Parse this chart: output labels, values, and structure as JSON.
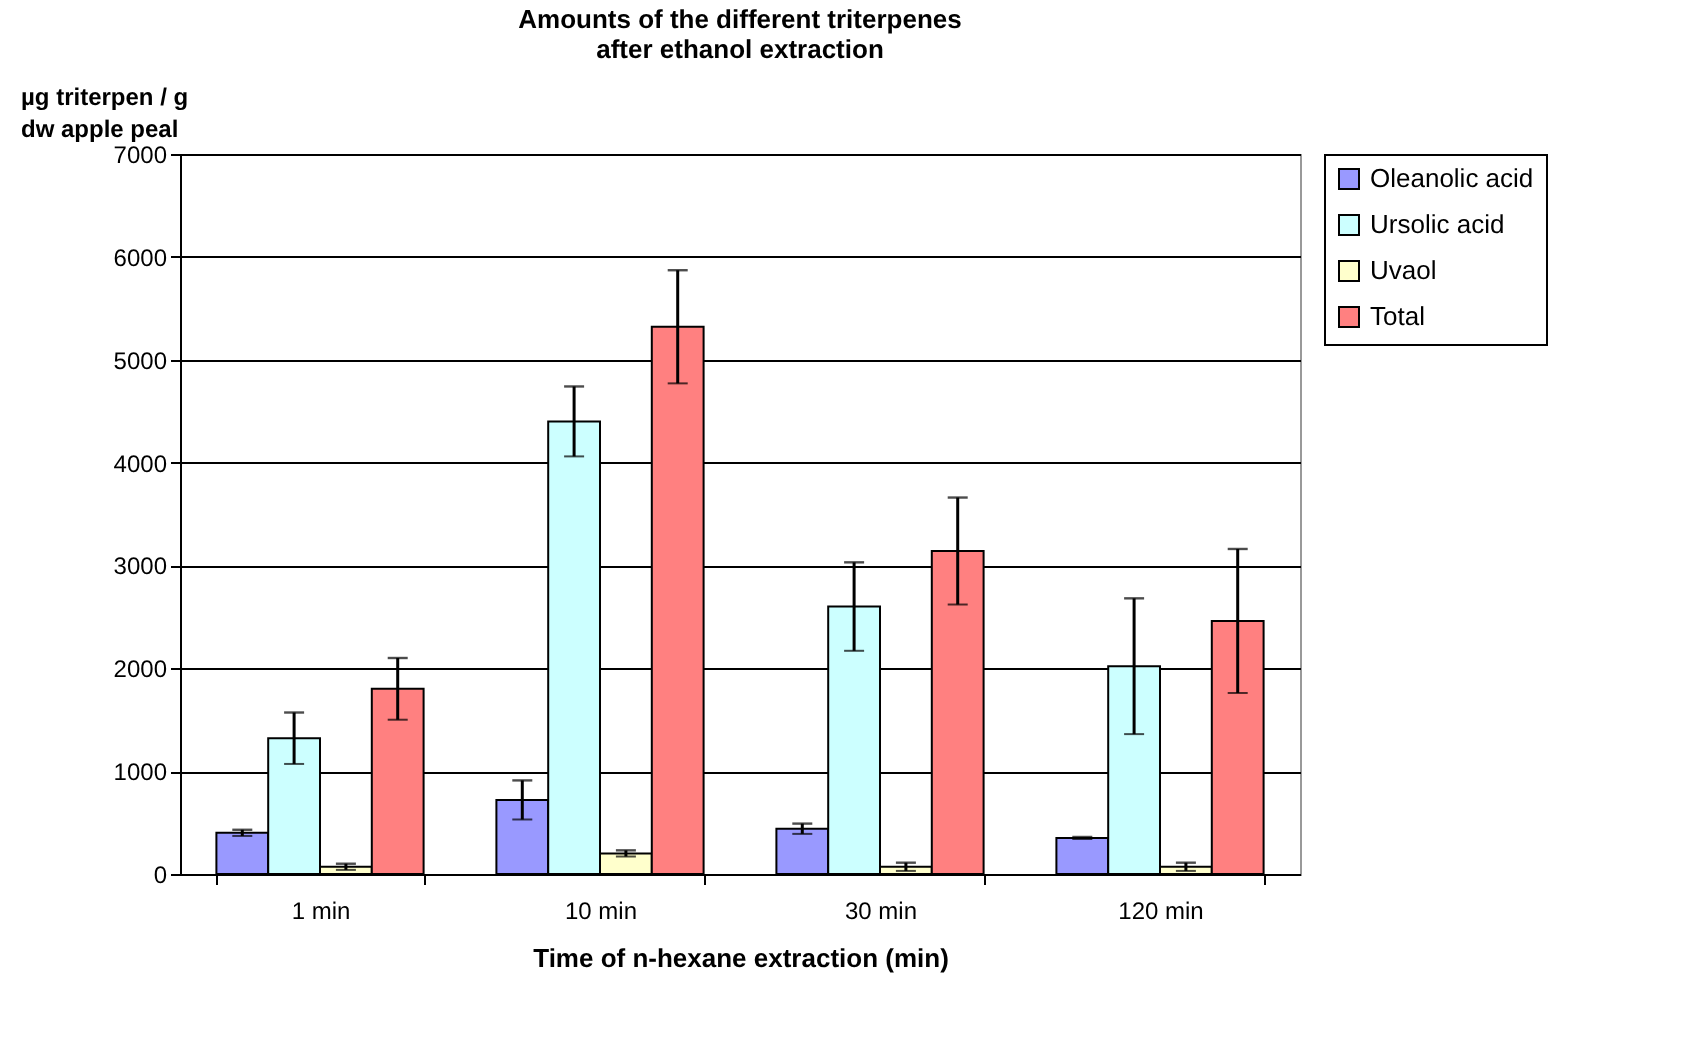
{
  "chart_data": {
    "type": "bar",
    "title": "Amounts of the different triterpenes\nafter ethanol extraction",
    "ylabel": "µg triterpen / g\ndw apple peal",
    "xlabel": "Time of n-hexane extraction (min)",
    "categories": [
      "1 min",
      "10 min",
      "30 min",
      "120 min"
    ],
    "series": [
      {
        "name": "Oleanolic acid",
        "color": "#9999ff",
        "values": [
          400,
          720,
          440,
          350
        ],
        "errors": [
          30,
          190,
          50,
          10
        ]
      },
      {
        "name": "Ursolic acid",
        "color": "#ccffff",
        "values": [
          1320,
          4400,
          2600,
          2020
        ],
        "errors": [
          250,
          340,
          430,
          660
        ]
      },
      {
        "name": "Uvaol",
        "color": "#ffffcc",
        "values": [
          70,
          200,
          70,
          70
        ],
        "errors": [
          30,
          30,
          40,
          40
        ]
      },
      {
        "name": "Total",
        "color": "#ff8080",
        "values": [
          1800,
          5320,
          3140,
          2460
        ],
        "errors": [
          300,
          550,
          520,
          700
        ]
      }
    ],
    "ylim": [
      0,
      7000
    ],
    "yticks": [
      0,
      1000,
      2000,
      3000,
      4000,
      5000,
      6000,
      7000
    ],
    "grid": "y",
    "legend": "right"
  }
}
